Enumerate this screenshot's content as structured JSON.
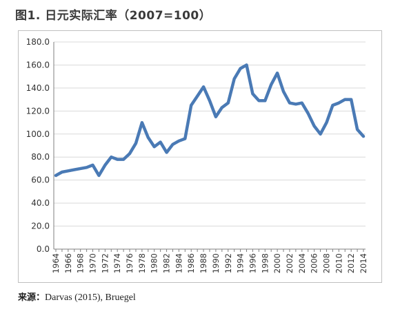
{
  "title": "图1. 日元实际汇率（2007=100）",
  "source": {
    "label": "来源：",
    "text": "Darvas (2015), Bruegel"
  },
  "colors": {
    "line": "#4a7ab5",
    "grid": "#d9d9d9",
    "axis": "#7f7f7f"
  },
  "chart_data": {
    "type": "line",
    "title": "",
    "xlabel": "",
    "ylabel": "",
    "ylim": [
      0,
      180
    ],
    "y_ticks": [
      "0.0",
      "20.0",
      "40.0",
      "60.0",
      "80.0",
      "100.0",
      "120.0",
      "140.0",
      "160.0",
      "180.0"
    ],
    "x_ticks": [
      "1964",
      "1966",
      "1968",
      "1970",
      "1972",
      "1974",
      "1976",
      "1978",
      "1980",
      "1982",
      "1984",
      "1986",
      "1988",
      "1990",
      "1992",
      "1994",
      "1996",
      "1998",
      "2000",
      "2002",
      "2004",
      "2006",
      "2008",
      "2010",
      "2012",
      "2014"
    ],
    "grid": "horizontal",
    "x": [
      1964,
      1965,
      1966,
      1967,
      1968,
      1969,
      1970,
      1971,
      1972,
      1973,
      1974,
      1975,
      1976,
      1977,
      1978,
      1979,
      1980,
      1981,
      1982,
      1983,
      1984,
      1985,
      1986,
      1987,
      1988,
      1989,
      1990,
      1991,
      1992,
      1993,
      1994,
      1995,
      1996,
      1997,
      1998,
      1999,
      2000,
      2001,
      2002,
      2003,
      2004,
      2005,
      2006,
      2007,
      2008,
      2009,
      2010,
      2011,
      2012,
      2013,
      2014
    ],
    "series": [
      {
        "values": [
          64,
          67,
          68,
          69,
          70,
          71,
          73,
          64,
          73,
          80,
          78,
          78,
          83,
          92,
          110,
          97,
          89,
          93,
          84,
          91,
          94,
          96,
          125,
          133,
          141,
          129,
          115,
          123,
          127,
          148,
          157,
          160,
          135,
          129,
          129,
          143,
          153,
          137,
          127,
          126,
          127,
          118,
          107,
          100,
          110,
          125,
          127,
          130,
          130,
          104,
          98
        ]
      }
    ]
  }
}
